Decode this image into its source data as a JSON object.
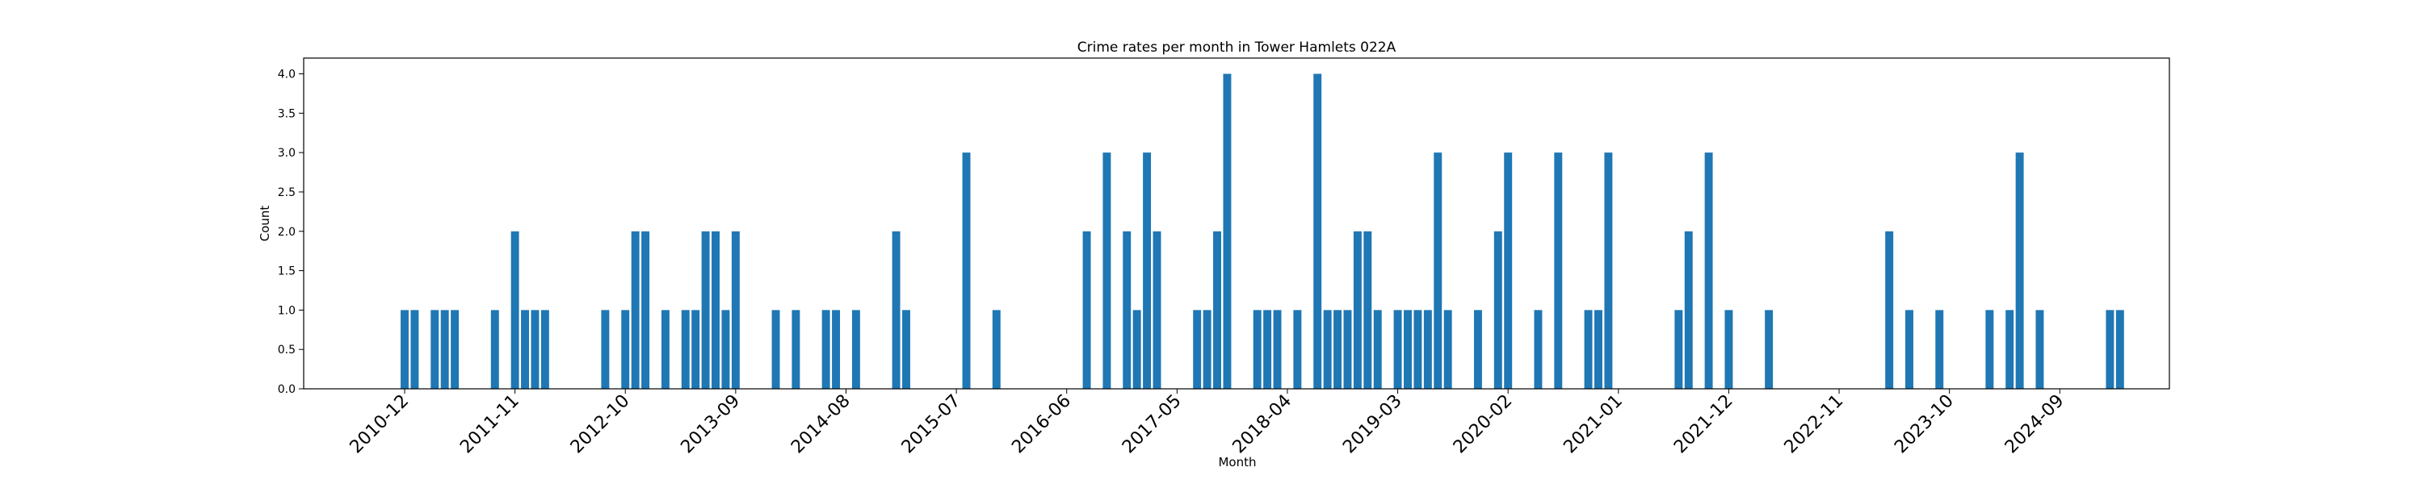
{
  "chart_data": {
    "type": "bar",
    "title": "Crime rates per month in Tower Hamlets 022A",
    "xlabel": "Month",
    "ylabel": "Count",
    "ylim": [
      0,
      4.2
    ],
    "yticks": [
      "0.0",
      "0.5",
      "1.0",
      "1.5",
      "2.0",
      "2.5",
      "3.0",
      "3.5",
      "4.0"
    ],
    "xticks": [
      "2010-12",
      "2011-11",
      "2012-10",
      "2013-09",
      "2014-08",
      "2015-07",
      "2016-06",
      "2017-05",
      "2018-04",
      "2019-03",
      "2020-02",
      "2021-01",
      "2021-12",
      "2022-11",
      "2023-10",
      "2024-09"
    ],
    "bar_color": "#1f77b4",
    "grid": false,
    "categories": [
      "2010-12",
      "2011-01",
      "2011-03",
      "2011-04",
      "2011-05",
      "2011-09",
      "2011-11",
      "2011-12",
      "2012-01",
      "2012-02",
      "2012-08",
      "2012-10",
      "2012-11",
      "2012-12",
      "2013-02",
      "2013-04",
      "2013-05",
      "2013-06",
      "2013-07",
      "2013-08",
      "2013-09",
      "2014-01",
      "2014-03",
      "2014-06",
      "2014-07",
      "2014-09",
      "2015-01",
      "2015-02",
      "2015-08",
      "2015-11",
      "2016-08",
      "2016-10",
      "2016-12",
      "2017-01",
      "2017-02",
      "2017-03",
      "2017-07",
      "2017-08",
      "2017-09",
      "2017-10",
      "2018-01",
      "2018-02",
      "2018-03",
      "2018-05",
      "2018-07",
      "2018-08",
      "2018-09",
      "2018-10",
      "2018-11",
      "2018-12",
      "2019-01",
      "2019-03",
      "2019-04",
      "2019-05",
      "2019-06",
      "2019-07",
      "2019-08",
      "2019-11",
      "2020-01",
      "2020-02",
      "2020-05",
      "2020-07",
      "2020-10",
      "2020-11",
      "2020-12",
      "2021-07",
      "2021-08",
      "2021-10",
      "2021-12",
      "2022-04",
      "2023-04",
      "2023-06",
      "2023-09",
      "2024-02",
      "2024-04",
      "2024-05",
      "2024-07",
      "2025-02",
      "2025-03"
    ],
    "values": [
      1,
      1,
      1,
      1,
      1,
      1,
      2,
      1,
      1,
      1,
      1,
      1,
      2,
      2,
      1,
      1,
      1,
      2,
      2,
      1,
      2,
      1,
      1,
      1,
      1,
      1,
      2,
      1,
      3,
      1,
      2,
      3,
      2,
      1,
      3,
      2,
      1,
      1,
      2,
      4,
      1,
      1,
      1,
      1,
      4,
      1,
      1,
      1,
      2,
      2,
      1,
      1,
      1,
      1,
      1,
      3,
      1,
      1,
      2,
      3,
      1,
      3,
      1,
      1,
      3,
      1,
      2,
      3,
      1,
      1,
      2,
      1,
      1,
      1,
      1,
      3,
      1,
      1,
      1
    ]
  }
}
